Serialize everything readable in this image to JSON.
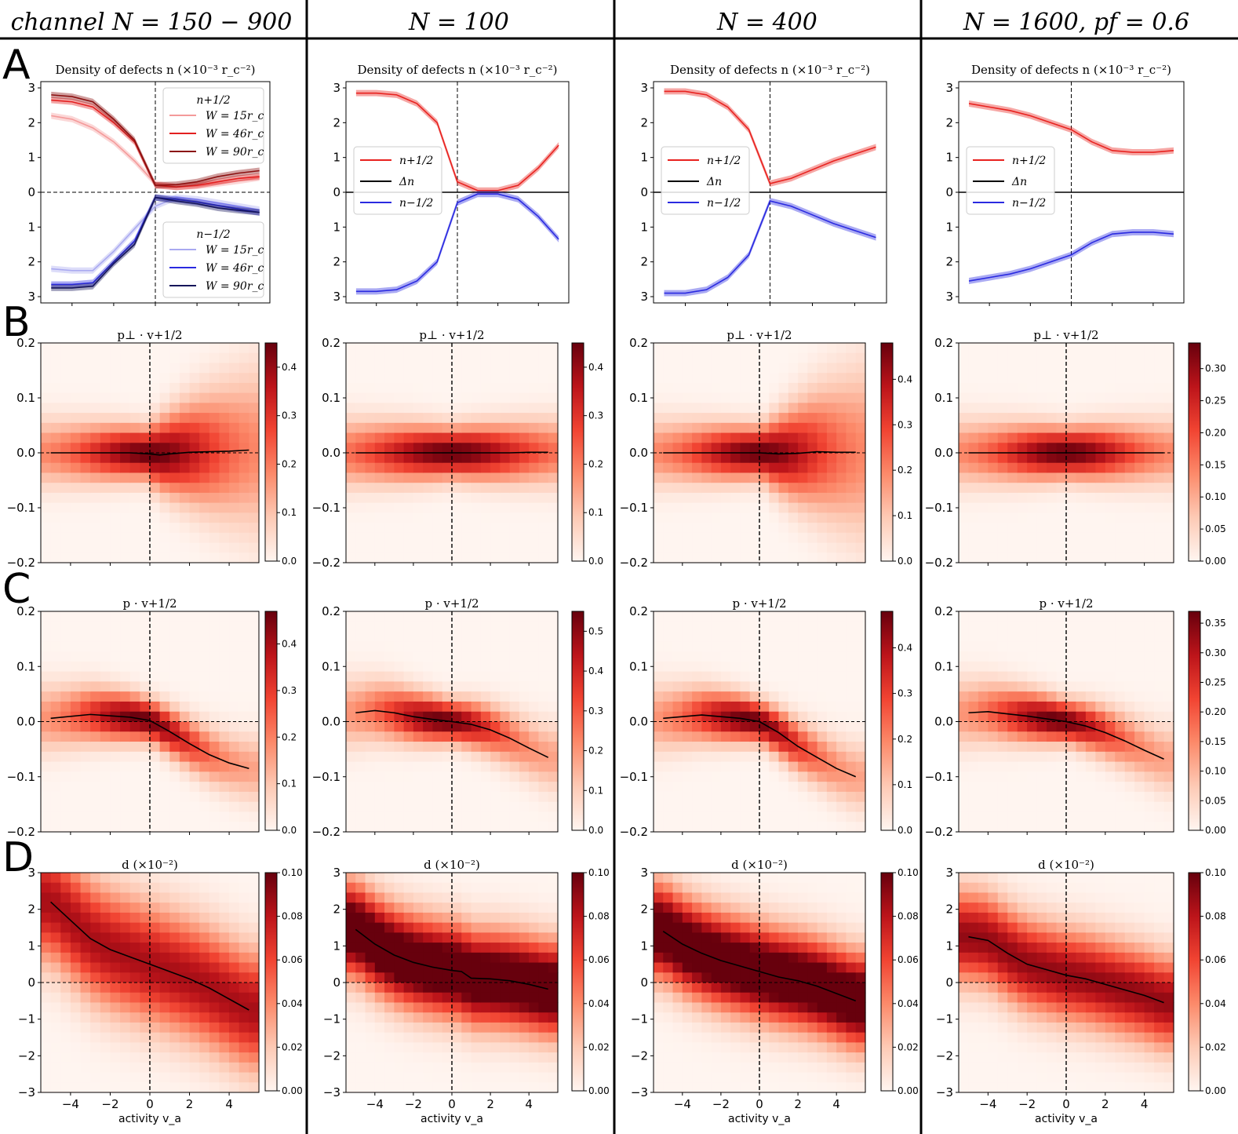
{
  "column_titles": [
    "channel N = 150 − 900",
    "N = 100",
    "N = 400",
    "N = 1600, pf = 0.6"
  ],
  "row_letters": [
    "A",
    "B",
    "C",
    "D"
  ],
  "row_titles": {
    "A": "Density of defects n (×10⁻³ r_c⁻²)",
    "B": "p⊥ · v+1/2",
    "C": "p · v+1/2",
    "D": "d (×10⁻²)"
  },
  "x_label": "activity v_a",
  "colors": {
    "plus": "#e8221f",
    "minus": "#2a2ae0",
    "cmap_low": "#fff5f0",
    "cmap_high": "#67000d"
  },
  "legends": {
    "A0_top": {
      "header": "n+1/2",
      "entries": [
        "W = 15r_c",
        "W = 46r_c",
        "W = 90r_c"
      ]
    },
    "A0_bottom": {
      "header": "n−1/2",
      "entries": [
        "W = 15r_c",
        "W = 46r_c",
        "W = 90r_c"
      ]
    },
    "A_single": [
      "n+1/2",
      "Δn",
      "n−1/2"
    ]
  },
  "chart_data": [
    {
      "panel": "A",
      "type": "line",
      "title": "Density of defects n (×10⁻³ r_c⁻²)",
      "ylim": [
        -3,
        3
      ],
      "xlim": [
        -5.5,
        5.5
      ],
      "yticks": [
        "3",
        "2",
        "1",
        "0",
        "1",
        "2",
        "3"
      ],
      "columns": [
        {
          "x": [
            -5,
            -4,
            -3,
            -2,
            -1,
            0,
            1,
            2,
            3,
            4,
            5
          ],
          "series": [
            {
              "name": "n+1/2, W = 15r_c",
              "values": [
                2.2,
                2.1,
                1.85,
                1.45,
                0.9,
                0.25,
                0.15,
                0.18,
                0.25,
                0.33,
                0.42
              ]
            },
            {
              "name": "n+1/2, W = 46r_c",
              "values": [
                2.65,
                2.6,
                2.45,
                2.0,
                1.45,
                0.2,
                0.15,
                0.2,
                0.3,
                0.4,
                0.45
              ]
            },
            {
              "name": "n+1/2, W = 90r_c",
              "values": [
                2.8,
                2.75,
                2.6,
                2.1,
                1.5,
                0.2,
                0.22,
                0.3,
                0.45,
                0.55,
                0.62
              ]
            },
            {
              "name": "n−1/2, W = 15r_c",
              "values": [
                -2.2,
                -2.25,
                -2.25,
                -1.7,
                -1.05,
                -0.4,
                -0.15,
                -0.2,
                -0.3,
                -0.4,
                -0.5
              ]
            },
            {
              "name": "n−1/2, W = 46r_c",
              "values": [
                -2.65,
                -2.65,
                -2.6,
                -2.0,
                -1.4,
                -0.15,
                -0.2,
                -0.28,
                -0.38,
                -0.48,
                -0.58
              ]
            },
            {
              "name": "n−1/2, W = 90r_c",
              "values": [
                -2.75,
                -2.75,
                -2.7,
                -2.05,
                -1.5,
                -0.15,
                -0.25,
                -0.33,
                -0.45,
                -0.52,
                -0.58
              ]
            }
          ]
        },
        {
          "x": [
            -5,
            -4,
            -3,
            -2,
            -1,
            0,
            1,
            2,
            3,
            4,
            5
          ],
          "series": [
            {
              "name": "n+1/2",
              "values": [
                2.85,
                2.85,
                2.8,
                2.55,
                2.0,
                0.3,
                0.05,
                0.05,
                0.2,
                0.7,
                1.35
              ]
            },
            {
              "name": "Δn",
              "values": [
                0,
                0,
                0,
                0,
                0,
                0,
                0,
                0,
                0,
                0,
                0
              ]
            },
            {
              "name": "n−1/2",
              "values": [
                -2.85,
                -2.85,
                -2.8,
                -2.55,
                -2.0,
                -0.3,
                -0.05,
                -0.05,
                -0.2,
                -0.7,
                -1.35
              ]
            }
          ]
        },
        {
          "x": [
            -5,
            -4,
            -3,
            -2,
            -1,
            0,
            1,
            2,
            3,
            4,
            5
          ],
          "series": [
            {
              "name": "n+1/2",
              "values": [
                2.9,
                2.9,
                2.8,
                2.45,
                1.8,
                0.25,
                0.4,
                0.65,
                0.9,
                1.1,
                1.3
              ]
            },
            {
              "name": "Δn",
              "values": [
                0,
                0,
                0,
                0,
                0,
                0,
                0,
                0,
                0,
                0,
                0
              ]
            },
            {
              "name": "n−1/2",
              "values": [
                -2.9,
                -2.9,
                -2.8,
                -2.45,
                -1.8,
                -0.25,
                -0.4,
                -0.65,
                -0.9,
                -1.1,
                -1.3
              ]
            }
          ]
        },
        {
          "x": [
            -5,
            -4,
            -3,
            -2,
            -1,
            0,
            1,
            2,
            3,
            4,
            5
          ],
          "series": [
            {
              "name": "n+1/2",
              "values": [
                2.55,
                2.45,
                2.35,
                2.2,
                2.0,
                1.8,
                1.45,
                1.2,
                1.15,
                1.15,
                1.2
              ]
            },
            {
              "name": "Δn",
              "values": [
                0,
                0,
                0,
                0,
                0,
                0,
                0,
                0,
                0,
                0,
                0
              ]
            },
            {
              "name": "n−1/2",
              "values": [
                -2.55,
                -2.45,
                -2.35,
                -2.2,
                -2.0,
                -1.8,
                -1.45,
                -1.2,
                -1.15,
                -1.15,
                -1.2
              ]
            }
          ]
        }
      ]
    },
    {
      "panel": "B",
      "type": "heatmap",
      "title": "p⊥ · v+1/2",
      "ylim": [
        -0.2,
        0.2
      ],
      "yticks": [
        "0.2",
        "0.1",
        "0.0",
        "−0.1",
        "−0.2"
      ],
      "colorbar_ticks": [
        [
          "0.0",
          "0.1",
          "0.2",
          "0.3",
          "0.4"
        ],
        [
          "0.0",
          "0.1",
          "0.2",
          "0.3",
          "0.4"
        ],
        [
          "0.0",
          "0.1",
          "0.2",
          "0.3",
          "0.4"
        ],
        [
          "0.00",
          "0.05",
          "0.10",
          "0.15",
          "0.20",
          "0.25",
          "0.30"
        ]
      ],
      "colorbar_max": [
        0.45,
        0.45,
        0.48,
        0.34
      ],
      "mean_line": [
        {
          "x": [
            -5,
            -4,
            -3,
            -2,
            -1,
            0,
            0.5,
            1,
            2,
            3,
            4,
            5
          ],
          "y": [
            0,
            0,
            0,
            0,
            0,
            -0.002,
            -0.004,
            -0.002,
            0.001,
            0.002,
            0.003,
            0.005
          ]
        },
        {
          "x": [
            -5,
            -4,
            -3,
            -2,
            -1,
            0,
            1,
            2,
            3,
            4,
            5
          ],
          "y": [
            0,
            0,
            0,
            0,
            0,
            0,
            0,
            0,
            0,
            0.001,
            0.001
          ]
        },
        {
          "x": [
            -5,
            -4,
            -3,
            -2,
            -1,
            0,
            1,
            2,
            3,
            4,
            5
          ],
          "y": [
            0,
            0,
            0,
            0,
            0,
            0,
            -0.002,
            -0.001,
            0.002,
            0.001,
            0.001
          ]
        },
        {
          "x": [
            -5,
            -4,
            -3,
            -2,
            -1,
            0,
            1,
            2,
            3,
            4,
            5
          ],
          "y": [
            0,
            0,
            0,
            0,
            0,
            0,
            0,
            0,
            0,
            0,
            0
          ]
        }
      ]
    },
    {
      "panel": "C",
      "type": "heatmap",
      "title": "p · v+1/2",
      "ylim": [
        -0.2,
        0.2
      ],
      "yticks": [
        "0.2",
        "0.1",
        "0.0",
        "−0.1",
        "−0.2"
      ],
      "colorbar_ticks": [
        [
          "0.0",
          "0.1",
          "0.2",
          "0.3",
          "0.4"
        ],
        [
          "0.0",
          "0.1",
          "0.2",
          "0.3",
          "0.4",
          "0.5"
        ],
        [
          "0.0",
          "0.1",
          "0.2",
          "0.3",
          "0.4"
        ],
        [
          "0.00",
          "0.05",
          "0.10",
          "0.15",
          "0.20",
          "0.25",
          "0.30",
          "0.35"
        ]
      ],
      "colorbar_max": [
        0.47,
        0.55,
        0.48,
        0.37
      ],
      "mean_line": [
        {
          "x": [
            -5,
            -3,
            -1,
            0,
            1,
            2,
            3,
            4,
            5
          ],
          "y": [
            0.006,
            0.013,
            0.008,
            0.002,
            -0.018,
            -0.04,
            -0.06,
            -0.075,
            -0.085
          ]
        },
        {
          "x": [
            -5,
            -4,
            -3,
            -2,
            -1,
            0,
            1,
            2,
            3,
            4,
            5
          ],
          "y": [
            0.016,
            0.02,
            0.016,
            0.009,
            0.004,
            0.0,
            -0.005,
            -0.015,
            -0.03,
            -0.048,
            -0.065
          ]
        },
        {
          "x": [
            -5,
            -3,
            -1,
            0,
            1,
            2,
            3,
            4,
            5
          ],
          "y": [
            0.006,
            0.012,
            0.006,
            0.0,
            -0.02,
            -0.045,
            -0.065,
            -0.085,
            -0.1
          ]
        },
        {
          "x": [
            -5,
            -4,
            -3,
            -2,
            -1,
            0,
            1,
            2,
            3,
            4,
            5
          ],
          "y": [
            0.016,
            0.018,
            0.014,
            0.01,
            0.005,
            0.0,
            -0.008,
            -0.02,
            -0.035,
            -0.052,
            -0.068
          ]
        }
      ]
    },
    {
      "panel": "D",
      "type": "heatmap",
      "title": "d (×10⁻²)",
      "ylim": [
        -3,
        3
      ],
      "xlim": [
        -5.5,
        5.5
      ],
      "yticks": [
        "3",
        "2",
        "1",
        "0",
        "−1",
        "−2",
        "−3"
      ],
      "xticks": [
        "−4",
        "−2",
        "0",
        "2",
        "4"
      ],
      "xlabel": "activity v_a",
      "colorbar_ticks": [
        [
          "0.00",
          "0.02",
          "0.04",
          "0.06",
          "0.08",
          "0.10"
        ],
        [
          "0.00",
          "0.02",
          "0.04",
          "0.06",
          "0.08",
          "0.10"
        ],
        [
          "0.00",
          "0.02",
          "0.04",
          "0.06",
          "0.08",
          "0.10"
        ],
        [
          "0.00",
          "0.02",
          "0.04",
          "0.06",
          "0.08",
          "0.10"
        ]
      ],
      "colorbar_max": [
        0.1,
        0.1,
        0.1,
        0.1
      ],
      "mean_line": [
        {
          "x": [
            -5,
            -4,
            -3,
            -2,
            -1,
            0,
            1,
            2,
            3,
            4,
            5
          ],
          "y": [
            2.2,
            1.7,
            1.2,
            0.9,
            0.7,
            0.5,
            0.3,
            0.1,
            -0.15,
            -0.45,
            -0.75
          ]
        },
        {
          "x": [
            -5,
            -4,
            -3,
            -2,
            -1,
            0,
            0.5,
            1,
            2,
            3,
            4,
            5
          ],
          "y": [
            1.45,
            1.05,
            0.75,
            0.55,
            0.42,
            0.33,
            0.3,
            0.12,
            0.1,
            0.05,
            -0.05,
            -0.18
          ]
        },
        {
          "x": [
            -5,
            -4,
            -3,
            -2,
            -1,
            0,
            1,
            2,
            3,
            4,
            5
          ],
          "y": [
            1.4,
            1.05,
            0.8,
            0.6,
            0.45,
            0.3,
            0.15,
            0.05,
            -0.1,
            -0.3,
            -0.5
          ]
        },
        {
          "x": [
            -5,
            -4,
            -3,
            -2,
            -1,
            0,
            1,
            2,
            3,
            4,
            5
          ],
          "y": [
            1.25,
            1.15,
            0.8,
            0.5,
            0.35,
            0.2,
            0.1,
            -0.05,
            -0.2,
            -0.35,
            -0.55
          ]
        }
      ]
    }
  ]
}
